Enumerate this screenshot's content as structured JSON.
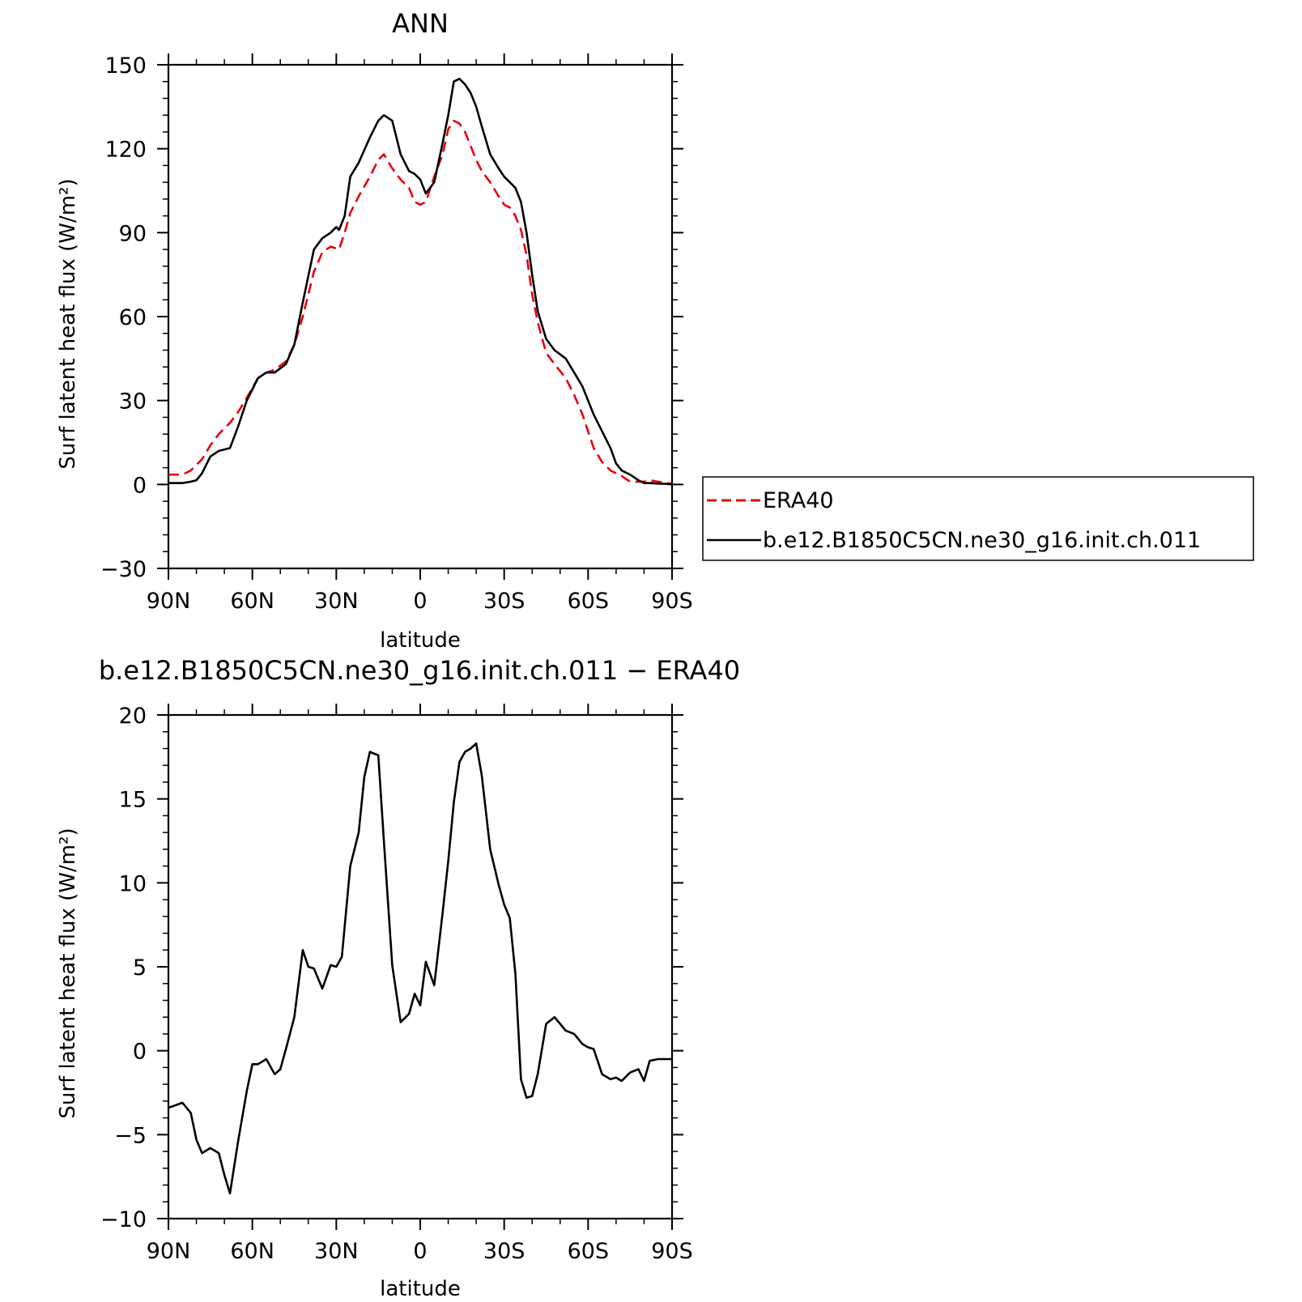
{
  "chart_data": [
    {
      "type": "line",
      "title": "ANN",
      "xlabel": "latitude",
      "ylabel": "Surf latent heat flux (W/m²)",
      "xlim": [
        -90,
        90
      ],
      "ylim": [
        -30,
        150
      ],
      "x_ticks": [
        -90,
        -60,
        -30,
        0,
        30,
        60,
        90
      ],
      "x_tick_labels": [
        "90N",
        "60N",
        "30N",
        "0",
        "30S",
        "60S",
        "90S"
      ],
      "y_ticks": [
        -30,
        0,
        30,
        60,
        90,
        120,
        150
      ],
      "y_tick_labels": [
        "−30",
        "0",
        "30",
        "60",
        "90",
        "120",
        "150"
      ],
      "grid": false,
      "legend": "right",
      "series": [
        {
          "name": "ERA40",
          "color": "#e8000b",
          "dash": "dashed",
          "x": [
            -90,
            -85,
            -82,
            -78,
            -75,
            -72,
            -68,
            -65,
            -62,
            -58,
            -55,
            -52,
            -48,
            -45,
            -42,
            -38,
            -35,
            -32,
            -29,
            -27,
            -25,
            -22,
            -18,
            -15,
            -13,
            -10,
            -7,
            -4,
            -2,
            0,
            2,
            5,
            8,
            10,
            12,
            14,
            16,
            18,
            20,
            22,
            25,
            28,
            30,
            32,
            34,
            36,
            38,
            40,
            42,
            45,
            48,
            52,
            55,
            58,
            60,
            62,
            65,
            68,
            70,
            72,
            75,
            78,
            80,
            82,
            85,
            88,
            90
          ],
          "values": [
            3.5,
            3.5,
            5,
            9,
            14,
            18,
            22,
            26,
            31,
            38,
            40,
            41,
            44,
            50,
            60,
            76,
            83,
            85,
            84,
            90,
            97,
            103,
            110,
            116,
            118,
            113,
            109,
            106,
            101,
            100,
            101,
            110,
            118,
            127,
            130,
            129,
            126,
            121,
            116,
            112,
            108,
            103,
            100,
            99,
            96,
            91,
            82,
            68,
            58,
            47,
            43,
            38,
            32,
            25,
            19,
            13,
            8,
            5,
            4,
            3,
            1,
            1,
            1,
            1.5,
            1,
            0.5,
            0.3
          ]
        },
        {
          "name": "b.e12.B1850C5CN.ne30_g16.init.ch.011",
          "color": "#000000",
          "dash": "solid",
          "x": [
            -90,
            -85,
            -82,
            -80,
            -78,
            -75,
            -72,
            -68,
            -65,
            -62,
            -58,
            -55,
            -52,
            -48,
            -45,
            -42,
            -38,
            -35,
            -32,
            -30,
            -29,
            -27,
            -25,
            -22,
            -18,
            -15,
            -13,
            -10,
            -7,
            -4,
            -2,
            0,
            2,
            5,
            8,
            10,
            12,
            14,
            16,
            18,
            20,
            22,
            25,
            28,
            30,
            32,
            34,
            36,
            38,
            40,
            42,
            45,
            48,
            52,
            55,
            58,
            60,
            62,
            65,
            68,
            70,
            72,
            75,
            78,
            80,
            82,
            85,
            88,
            90
          ],
          "values": [
            0.5,
            0.5,
            1,
            1.5,
            4,
            10,
            12,
            13,
            21,
            30,
            38,
            40,
            40,
            43,
            50,
            65,
            84,
            88,
            90,
            92,
            91,
            96,
            110,
            115,
            124,
            130,
            132,
            130,
            118,
            112,
            111,
            109,
            104,
            108,
            122,
            132,
            144,
            145,
            143,
            140,
            135,
            128,
            118,
            113,
            110,
            108,
            106,
            101,
            90,
            75,
            62,
            52,
            48,
            45,
            40,
            35,
            30,
            25,
            19,
            13,
            7.5,
            5,
            3.5,
            1.5,
            0.5,
            0.5,
            0.3,
            0.2,
            0
          ]
        }
      ]
    },
    {
      "type": "line",
      "title": "b.e12.B1850C5CN.ne30_g16.init.ch.011 − ERA40",
      "xlabel": "latitude",
      "ylabel": "Surf latent heat flux (W/m²)",
      "xlim": [
        -90,
        90
      ],
      "ylim": [
        -10,
        20
      ],
      "x_ticks": [
        -90,
        -60,
        -30,
        0,
        30,
        60,
        90
      ],
      "x_tick_labels": [
        "90N",
        "60N",
        "30N",
        "0",
        "30S",
        "60S",
        "90S"
      ],
      "y_ticks": [
        -10,
        -5,
        0,
        5,
        10,
        15,
        20
      ],
      "y_tick_labels": [
        "−10",
        "−5",
        "0",
        "5",
        "10",
        "15",
        "20"
      ],
      "grid": false,
      "series": [
        {
          "color": "#000000",
          "dash": "solid",
          "x": [
            -90,
            -85,
            -82,
            -80,
            -78,
            -75,
            -72,
            -70,
            -68,
            -65,
            -62,
            -60,
            -58,
            -55,
            -52,
            -50,
            -48,
            -45,
            -42,
            -40,
            -38,
            -35,
            -32,
            -30,
            -28,
            -25,
            -22,
            -20,
            -18,
            -15,
            -13,
            -10,
            -7,
            -4,
            -2,
            0,
            2,
            5,
            8,
            10,
            12,
            14,
            16,
            18,
            20,
            22,
            25,
            28,
            30,
            32,
            34,
            36,
            38,
            40,
            42,
            45,
            48,
            50,
            52,
            55,
            58,
            60,
            62,
            65,
            68,
            70,
            72,
            75,
            78,
            80,
            82,
            85,
            88,
            90
          ],
          "values": [
            -3.4,
            -3.1,
            -3.7,
            -5.3,
            -6.1,
            -5.8,
            -6.1,
            -7.4,
            -8.5,
            -5.3,
            -2.4,
            -0.8,
            -0.8,
            -0.5,
            -1.4,
            -1.1,
            0.1,
            2,
            6,
            5,
            4.9,
            3.7,
            5.1,
            5,
            5.6,
            11,
            13,
            16.3,
            17.8,
            17.6,
            12.5,
            5.1,
            1.7,
            2.2,
            3.4,
            2.7,
            5.3,
            3.9,
            8.2,
            11.3,
            14.8,
            17.2,
            17.8,
            18,
            18.3,
            16.4,
            12,
            9.9,
            8.7,
            7.9,
            4.6,
            -1.7,
            -2.8,
            -2.7,
            -1.4,
            1.6,
            2,
            1.6,
            1.2,
            1,
            0.4,
            0.2,
            0.1,
            -1.4,
            -1.7,
            -1.6,
            -1.8,
            -1.3,
            -1.1,
            -1.8,
            -0.6,
            -0.5,
            -0.5,
            -0.5
          ]
        }
      ]
    }
  ]
}
